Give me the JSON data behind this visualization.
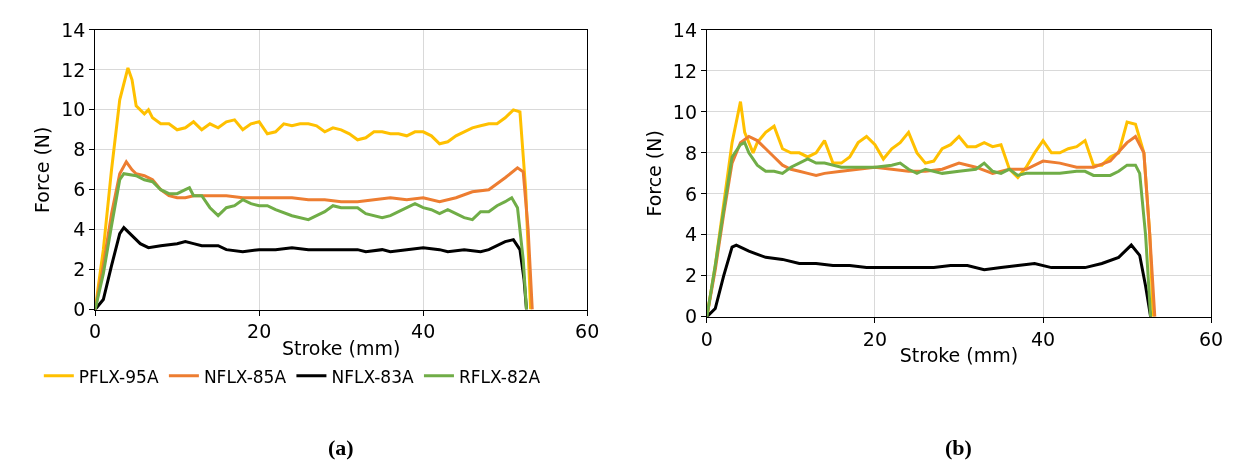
{
  "chart_data": [
    {
      "type": "line",
      "xlabel": "Stroke (mm)",
      "ylabel": "Force (N)",
      "xlim": [
        0,
        60
      ],
      "xticks": [
        0,
        20,
        40,
        60
      ],
      "ylim": [
        0,
        14
      ],
      "yticks": [
        0,
        2,
        4,
        6,
        8,
        10,
        12,
        14
      ],
      "grid": true,
      "legend": "bottom",
      "annotations": [
        "(a)"
      ],
      "series": [
        {
          "name": "PFLX-95A",
          "color": "#ffc000",
          "x": [
            0,
            1,
            2,
            3,
            4,
            4.5,
            5,
            6,
            6.5,
            7,
            8,
            9,
            10,
            11,
            12,
            13,
            14,
            15,
            16,
            17,
            18,
            19,
            20,
            21,
            22,
            23,
            24,
            25,
            26,
            27,
            28,
            29,
            30,
            31,
            32,
            33,
            34,
            35,
            36,
            37,
            38,
            39,
            40,
            41,
            42,
            43,
            44,
            45,
            46,
            47,
            48,
            49,
            50,
            51,
            51.8,
            52.5,
            53.1
          ],
          "values": [
            0,
            3,
            7,
            10.5,
            12.1,
            11.5,
            10.2,
            9.8,
            10,
            9.6,
            9.3,
            9.3,
            9.0,
            9.1,
            9.4,
            9.0,
            9.3,
            9.1,
            9.4,
            9.5,
            9.0,
            9.3,
            9.4,
            8.8,
            8.9,
            9.3,
            9.2,
            9.3,
            9.3,
            9.2,
            8.9,
            9.1,
            9.0,
            8.8,
            8.5,
            8.6,
            8.9,
            8.9,
            8.8,
            8.8,
            8.7,
            8.9,
            8.9,
            8.7,
            8.3,
            8.4,
            8.7,
            8.9,
            9.1,
            9.2,
            9.3,
            9.3,
            9.6,
            10.0,
            9.9,
            6,
            0
          ]
        },
        {
          "name": "NFLX-85A",
          "color": "#ed7d31",
          "x": [
            0,
            1,
            2,
            3,
            3.8,
            4.5,
            5,
            6,
            7,
            8,
            9,
            10,
            11,
            12,
            14,
            16,
            18,
            20,
            22,
            24,
            26,
            28,
            30,
            32,
            34,
            36,
            38,
            40,
            42,
            44,
            46,
            48,
            50,
            51.5,
            52.2,
            52.8,
            53.3
          ],
          "values": [
            0,
            2.2,
            4.8,
            6.8,
            7.4,
            7.0,
            6.8,
            6.7,
            6.5,
            6.0,
            5.7,
            5.6,
            5.6,
            5.7,
            5.7,
            5.7,
            5.6,
            5.6,
            5.6,
            5.6,
            5.5,
            5.5,
            5.4,
            5.4,
            5.5,
            5.6,
            5.5,
            5.6,
            5.4,
            5.6,
            5.9,
            6.0,
            6.6,
            7.1,
            6.9,
            4,
            0
          ]
        },
        {
          "name": "NFLX-83A",
          "color": "#000000",
          "x": [
            0,
            1,
            2,
            3,
            3.5,
            4.5,
            5.5,
            6.5,
            8,
            10,
            11,
            12,
            13,
            15,
            16,
            18,
            20,
            22,
            24,
            26,
            28,
            30,
            32,
            33,
            35,
            36,
            38,
            40,
            42,
            43,
            45,
            47,
            48,
            50,
            51,
            51.8,
            52.3,
            52.6
          ],
          "values": [
            0,
            0.5,
            2.2,
            3.8,
            4.1,
            3.7,
            3.3,
            3.1,
            3.2,
            3.3,
            3.4,
            3.3,
            3.2,
            3.2,
            3.0,
            2.9,
            3.0,
            3.0,
            3.1,
            3.0,
            3.0,
            3.0,
            3.0,
            2.9,
            3.0,
            2.9,
            3.0,
            3.1,
            3.0,
            2.9,
            3.0,
            2.9,
            3.0,
            3.4,
            3.5,
            3.0,
            1.5,
            0
          ]
        },
        {
          "name": "RFLX-82A",
          "color": "#70ad47",
          "x": [
            0,
            1,
            2,
            3,
            3.5,
            5,
            6,
            7,
            8,
            9,
            10,
            11,
            11.5,
            12,
            13,
            14,
            15,
            16,
            17,
            18,
            19,
            20,
            21,
            22,
            24,
            26,
            27,
            28,
            29,
            30,
            32,
            33,
            35,
            36,
            38,
            39,
            40,
            41,
            42,
            43,
            44,
            45,
            46,
            47,
            48,
            49,
            50,
            50.8,
            51.5,
            52.2,
            52.6
          ],
          "values": [
            0,
            1.8,
            4.2,
            6.5,
            6.8,
            6.7,
            6.5,
            6.4,
            6.0,
            5.8,
            5.8,
            6.0,
            6.1,
            5.7,
            5.7,
            5.1,
            4.7,
            5.1,
            5.2,
            5.5,
            5.3,
            5.2,
            5.2,
            5.0,
            4.7,
            4.5,
            4.7,
            4.9,
            5.2,
            5.1,
            5.1,
            4.8,
            4.6,
            4.7,
            5.1,
            5.3,
            5.1,
            5.0,
            4.8,
            5.0,
            4.8,
            4.6,
            4.5,
            4.9,
            4.9,
            5.2,
            5.4,
            5.6,
            5.1,
            2.5,
            0
          ]
        }
      ]
    },
    {
      "type": "line",
      "xlabel": "Stroke (mm)",
      "ylabel": "Force (N)",
      "xlim": [
        0,
        60
      ],
      "xticks": [
        0,
        20,
        40,
        60
      ],
      "ylim": [
        0,
        14
      ],
      "yticks": [
        0,
        2,
        4,
        6,
        8,
        10,
        12,
        14
      ],
      "grid": true,
      "annotations": [
        "(b)"
      ],
      "series": [
        {
          "color": "#ffc000",
          "x": [
            0,
            1,
            2,
            3,
            4,
            4.5,
            5.5,
            6,
            7,
            8,
            9,
            10,
            11,
            12,
            13,
            14,
            15,
            16,
            17,
            18,
            19,
            20,
            21,
            22,
            23,
            24,
            25,
            26,
            27,
            28,
            29,
            30,
            31,
            32,
            33,
            34,
            35,
            36,
            37,
            38,
            39,
            40,
            41,
            42,
            43,
            44,
            45,
            46,
            47,
            48,
            49,
            50,
            51,
            52,
            52.7,
            53.1
          ],
          "values": [
            0,
            2.5,
            5.5,
            8.5,
            10.5,
            9,
            8,
            8.5,
            9,
            9.3,
            8.2,
            8,
            8,
            7.8,
            8,
            8.6,
            7.5,
            7.5,
            7.8,
            8.5,
            8.8,
            8.4,
            7.7,
            8.2,
            8.5,
            9.0,
            8.0,
            7.5,
            7.6,
            8.2,
            8.4,
            8.8,
            8.3,
            8.3,
            8.5,
            8.3,
            8.4,
            7.2,
            6.8,
            7.3,
            8.0,
            8.6,
            8.0,
            8.0,
            8.2,
            8.3,
            8.6,
            7.4,
            7.4,
            7.8,
            8.0,
            9.5,
            9.4,
            8,
            4,
            0
          ]
        },
        {
          "color": "#ed7d31",
          "x": [
            0,
            1,
            2,
            3,
            4,
            5,
            6,
            7,
            8,
            9,
            10,
            11,
            12,
            13,
            14,
            16,
            18,
            20,
            22,
            24,
            26,
            28,
            30,
            32,
            34,
            36,
            38,
            40,
            42,
            44,
            46,
            48,
            50,
            51,
            52,
            52.7,
            53.3
          ],
          "values": [
            0,
            2.3,
            5,
            7.5,
            8.5,
            8.8,
            8.6,
            8.2,
            7.8,
            7.4,
            7.2,
            7.1,
            7.0,
            6.9,
            7.0,
            7.1,
            7.2,
            7.3,
            7.2,
            7.1,
            7.1,
            7.2,
            7.5,
            7.3,
            7.0,
            7.2,
            7.2,
            7.6,
            7.5,
            7.3,
            7.3,
            7.6,
            8.5,
            8.8,
            8.0,
            4,
            0
          ]
        },
        {
          "color": "#000000",
          "x": [
            0,
            1,
            2,
            3,
            3.5,
            5,
            7,
            9,
            11,
            13,
            15,
            17,
            19,
            21,
            23,
            25,
            27,
            29,
            31,
            33,
            35,
            37,
            39,
            41,
            43,
            45,
            47,
            49,
            50.5,
            51.5,
            52.2,
            52.8
          ],
          "values": [
            0,
            0.4,
            2,
            3.4,
            3.5,
            3.2,
            2.9,
            2.8,
            2.6,
            2.6,
            2.5,
            2.5,
            2.4,
            2.4,
            2.4,
            2.4,
            2.4,
            2.5,
            2.5,
            2.3,
            2.4,
            2.5,
            2.6,
            2.4,
            2.4,
            2.4,
            2.6,
            2.9,
            3.5,
            3.0,
            1.5,
            0
          ]
        },
        {
          "color": "#70ad47",
          "x": [
            0,
            1,
            2,
            3,
            4,
            4.5,
            5,
            6,
            7,
            8,
            9,
            10,
            11,
            12,
            13,
            14,
            16,
            18,
            20,
            22,
            23,
            24,
            25,
            26,
            28,
            30,
            32,
            33,
            34,
            35,
            36,
            37,
            38,
            40,
            42,
            44,
            45,
            46,
            48,
            49,
            50,
            51,
            51.5,
            52.2,
            52.8
          ],
          "values": [
            0,
            2.5,
            5.2,
            7.8,
            8.4,
            8.5,
            8,
            7.4,
            7.1,
            7.1,
            7.0,
            7.3,
            7.5,
            7.7,
            7.5,
            7.5,
            7.3,
            7.3,
            7.3,
            7.4,
            7.5,
            7.2,
            7.0,
            7.2,
            7.0,
            7.1,
            7.2,
            7.5,
            7.1,
            7.0,
            7.2,
            6.9,
            7.0,
            7.0,
            7.0,
            7.1,
            7.1,
            6.9,
            6.9,
            7.1,
            7.4,
            7.4,
            7.0,
            4,
            0
          ]
        }
      ]
    }
  ]
}
